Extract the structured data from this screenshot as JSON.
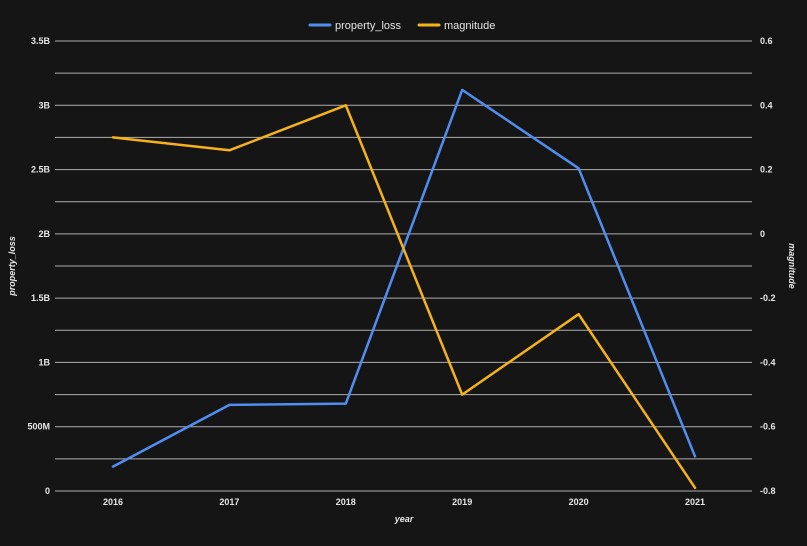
{
  "chart_data": {
    "type": "line",
    "categories": [
      "2016",
      "2017",
      "2018",
      "2019",
      "2020",
      "2021"
    ],
    "xlabel": "year",
    "ylabel_left": "property_loss",
    "ylabel_right": "magnitude",
    "ylim_left": [
      0,
      3500000000
    ],
    "ylim_right": [
      -0.8,
      0.6
    ],
    "left_ticks": [
      {
        "value": 0,
        "label": "0"
      },
      {
        "value": 500000000,
        "label": "500M"
      },
      {
        "value": 1000000000,
        "label": "1B"
      },
      {
        "value": 1500000000,
        "label": "1.5B"
      },
      {
        "value": 2000000000,
        "label": "2B"
      },
      {
        "value": 2500000000,
        "label": "2.5B"
      },
      {
        "value": 3000000000,
        "label": "3B"
      },
      {
        "value": 3500000000,
        "label": "3.5B"
      }
    ],
    "right_ticks": [
      {
        "value": -0.8,
        "label": "-0.8"
      },
      {
        "value": -0.6,
        "label": "-0.6"
      },
      {
        "value": -0.4,
        "label": "-0.4"
      },
      {
        "value": -0.2,
        "label": "-0.2"
      },
      {
        "value": 0,
        "label": "0"
      },
      {
        "value": 0.2,
        "label": "0.2"
      },
      {
        "value": 0.4,
        "label": "0.4"
      },
      {
        "value": 0.6,
        "label": "0.6"
      }
    ],
    "grid": true,
    "legend_position": "top-center",
    "series": [
      {
        "name": "property_loss",
        "axis": "left",
        "color": "#4f8ef0",
        "values": [
          190000000,
          670000000,
          680000000,
          3120000000,
          2510000000,
          270000000
        ]
      },
      {
        "name": "magnitude",
        "axis": "right",
        "color": "#f5b21b",
        "values": [
          0.3,
          0.26,
          0.4,
          -0.5,
          -0.25,
          -0.79
        ]
      }
    ]
  }
}
